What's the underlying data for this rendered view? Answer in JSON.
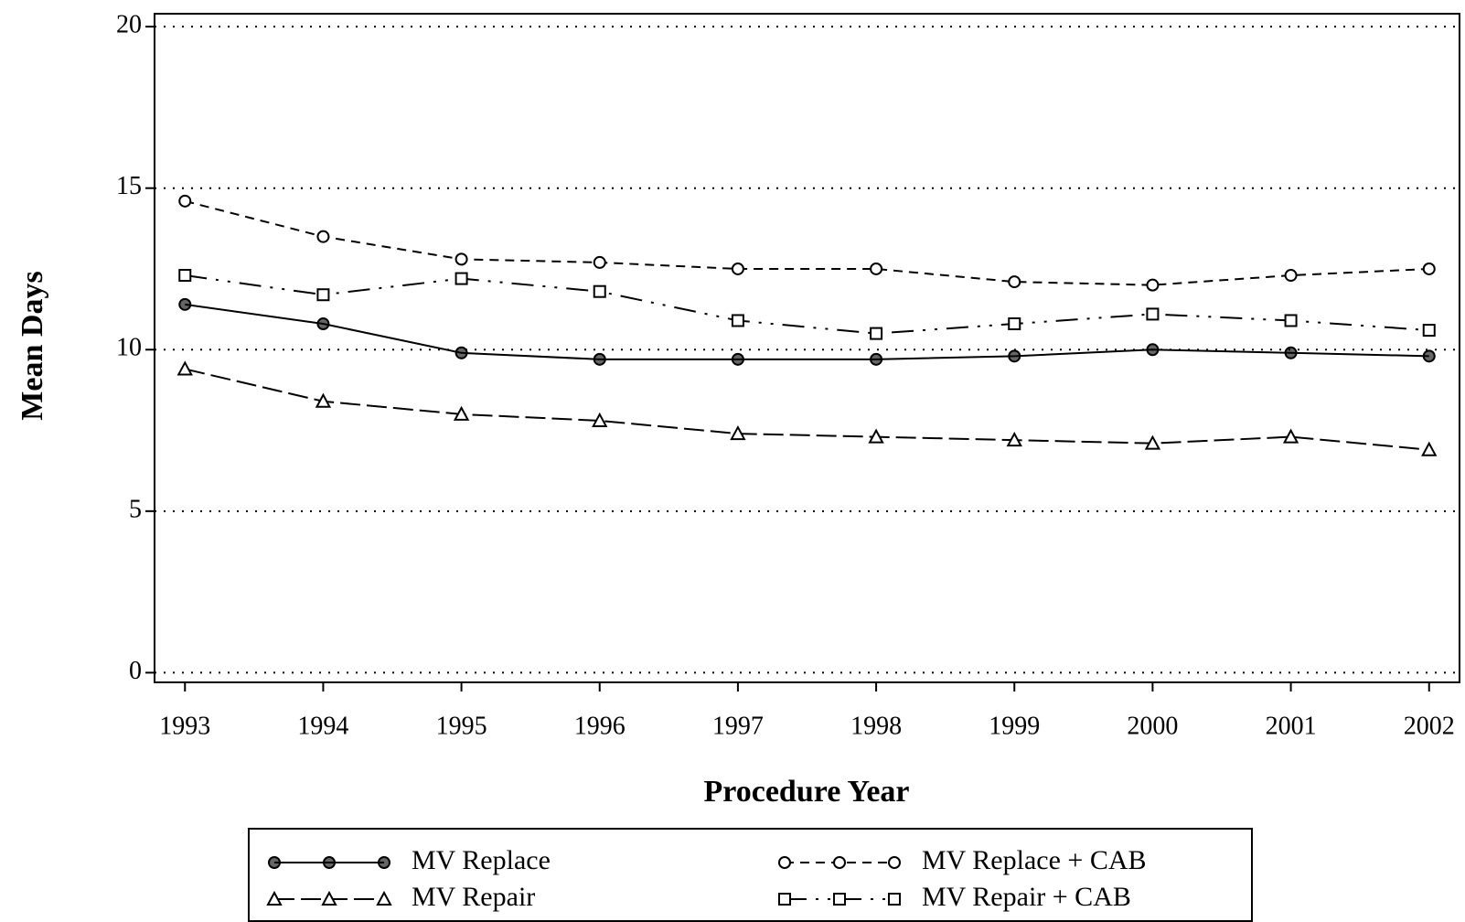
{
  "chart_data": {
    "type": "line",
    "x_label": "Procedure Year",
    "y_label": "Mean Days",
    "x": [
      1993,
      1994,
      1995,
      1996,
      1997,
      1998,
      1999,
      2000,
      2001,
      2002
    ],
    "xlim": [
      1992.78,
      2002.22
    ],
    "xticks": [
      1993,
      1994,
      1995,
      1996,
      1997,
      1998,
      1999,
      2000,
      2001,
      2002
    ],
    "ylim": [
      -0.3,
      20.4
    ],
    "yticks": [
      0,
      5,
      10,
      15,
      20
    ],
    "grid": true,
    "series": [
      {
        "name": "MV Replace",
        "color": "#000000",
        "marker": "circle-filled",
        "dash": "solid",
        "values": [
          11.4,
          10.8,
          9.9,
          9.7,
          9.7,
          9.7,
          9.8,
          10.0,
          9.9,
          9.8
        ]
      },
      {
        "name": "MV Repair",
        "color": "#000000",
        "marker": "triangle",
        "dash": "long-dash",
        "values": [
          9.4,
          8.4,
          8.0,
          7.8,
          7.4,
          7.3,
          7.2,
          7.1,
          7.3,
          6.9
        ]
      },
      {
        "name": "MV Replace +  CAB",
        "color": "#000000",
        "marker": "circle",
        "dash": "dash",
        "values": [
          14.6,
          13.5,
          12.8,
          12.7,
          12.5,
          12.5,
          12.1,
          12.0,
          12.3,
          12.5
        ]
      },
      {
        "name": "MV Repair +  CAB",
        "color": "#000000",
        "marker": "square",
        "dash": "dash-dot-dot",
        "values": [
          12.3,
          11.7,
          12.2,
          11.8,
          10.9,
          10.5,
          10.8,
          11.1,
          10.9,
          10.6
        ]
      }
    ]
  }
}
